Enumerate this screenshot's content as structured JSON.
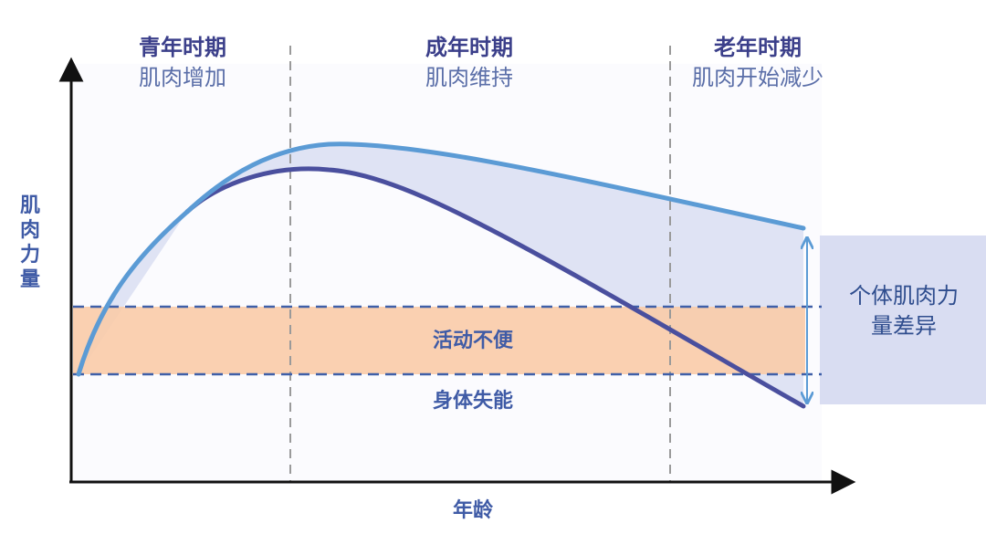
{
  "phases": [
    {
      "title": "青年时期",
      "subtitle": "肌肉增加"
    },
    {
      "title": "成年时期",
      "subtitle": "肌肉维持"
    },
    {
      "title": "老年时期",
      "subtitle": "肌肉开始减少"
    }
  ],
  "y_axis_label": [
    "肌",
    "肉",
    "力",
    "量"
  ],
  "x_axis_label": "年龄",
  "zones": {
    "inconvenience": "活动不便",
    "disability": "身体失能"
  },
  "variation_label": [
    "个体肌肉力",
    "量差异"
  ],
  "colors": {
    "upper_curve": "#5b9bd5",
    "lower_curve": "#4a4f9e",
    "variation_fill": "#d9ddf2",
    "disability_band": "#f9cba9",
    "dashed_lines": "#3f5fa8",
    "phase_dividers": "#999999",
    "title_text": "#3b3f8a",
    "subtitle_text": "#5a6ea8"
  }
}
